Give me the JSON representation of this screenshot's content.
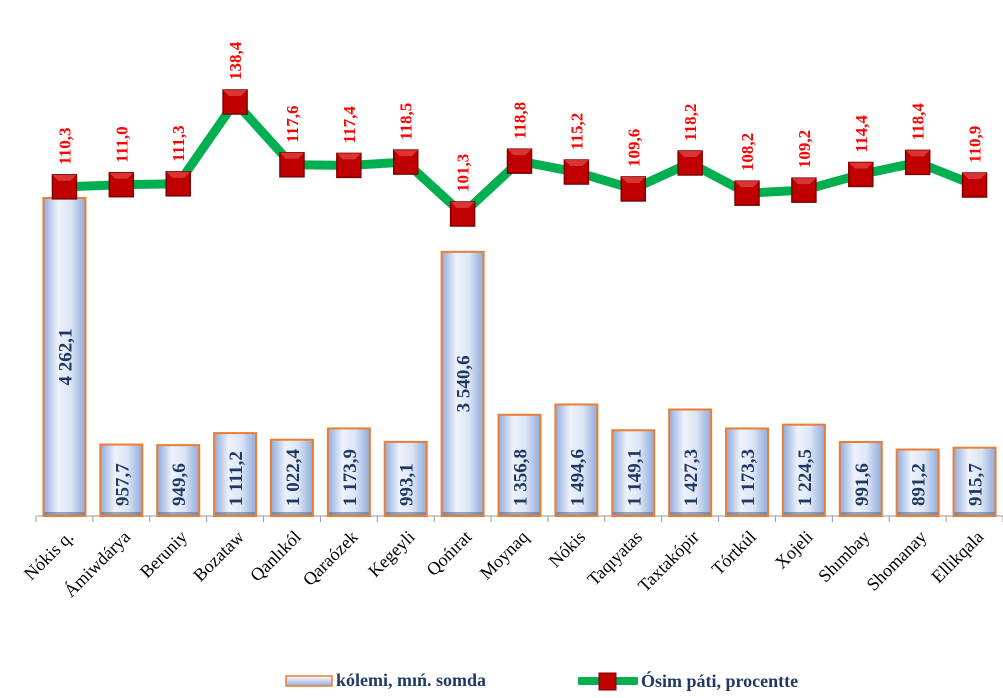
{
  "chart_data": {
    "type": "bar",
    "categories": [
      "Nókis q.",
      "Ámiwdárya",
      "Beruniy",
      "Bozataw",
      "Qanlıkól",
      "Qaraózek",
      "Kegeyli",
      "Qońırat",
      "Moynaq",
      "Nókis",
      "Taqıyatas",
      "Taxtakópir",
      "Tórtkúl",
      "Xojeli",
      "Shımbay",
      "Shomanay",
      "Ellikqala"
    ],
    "series": [
      {
        "name": "kólemi, mıń. somda",
        "type": "bar",
        "values": [
          4262.1,
          957.7,
          949.6,
          1111.2,
          1022.4,
          1173.9,
          993.1,
          3540.6,
          1356.8,
          1494.6,
          1149.1,
          1427.3,
          1173.3,
          1224.5,
          991.6,
          891.2,
          915.7
        ],
        "labels": [
          "4 262,1",
          "957,7",
          "949,6",
          "1 111,2",
          "1 022,4",
          "1 173,9",
          "993,1",
          "3 540,6",
          "1 356,8",
          "1 494,6",
          "1 149,1",
          "1 427,3",
          "1 173,3",
          "1 224,5",
          "991,6",
          "891,2",
          "915,7"
        ]
      },
      {
        "name": "Ósim páti, procentte",
        "type": "line",
        "values": [
          110.3,
          111.0,
          111.3,
          138.4,
          117.6,
          117.4,
          118.5,
          101.3,
          118.8,
          115.2,
          109.6,
          118.2,
          108.2,
          109.2,
          114.4,
          118.4,
          110.9
        ],
        "labels": [
          "110,3",
          "111,0",
          "111,3",
          "138,4",
          "117,6",
          "117,4",
          "118,5",
          "101,3",
          "118,8",
          "115,2",
          "109,6",
          "118,2",
          "108,2",
          "109,2",
          "114,4",
          "118,4",
          "110,9"
        ]
      }
    ],
    "colors": {
      "bar_fill_top": "#ffffff",
      "bar_fill_bottom": "#b4c7e7",
      "bar_border": "#ed7d31",
      "bar_label": "#1f3864",
      "line": "#00b050",
      "marker": "#c00000",
      "line_label": "#ff0000"
    },
    "grid": false,
    "legend_position": "bottom"
  }
}
